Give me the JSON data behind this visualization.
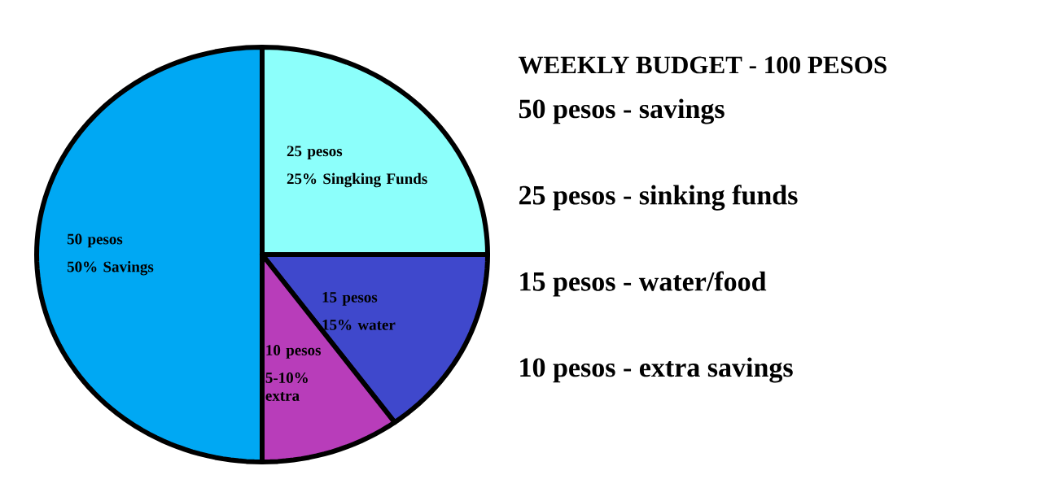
{
  "chart_data": {
    "type": "pie",
    "title": "WEEKLY BUDGET - 100 PESOS",
    "categories": [
      "50% Savings",
      "25% Singking Funds",
      "15% water",
      "5-10% extra"
    ],
    "values": [
      50,
      25,
      15,
      10
    ],
    "value_labels": [
      "50 pesos",
      "25 pesos",
      "15 pesos",
      "10 pesos"
    ],
    "colors": [
      "#00a8f3",
      "#8cfffb",
      "#3f48cc",
      "#b83dba"
    ],
    "annotations": [
      "50 pesos - savings",
      "25 pesos - sinking funds",
      "15 pesos - water/food",
      "10 pesos - extra savings"
    ]
  }
}
